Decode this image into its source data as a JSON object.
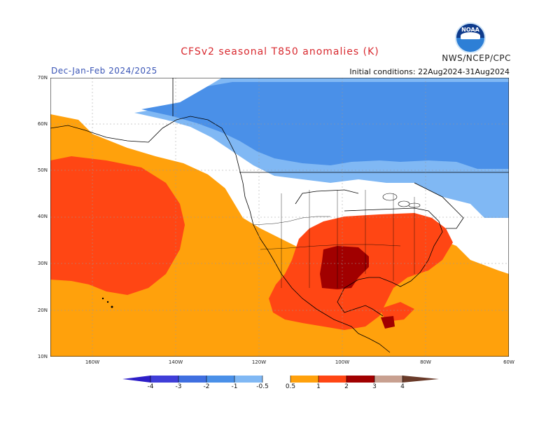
{
  "header": {
    "title": "CFSv2 seasonal T850 anomalies (K)",
    "org": "NWS/NCEP/CPC",
    "season": "Dec-Jan-Feb 2024/2025",
    "initial_conditions": "Initial conditions: 22Aug2024-31Aug2024",
    "logo_text": "NOAA"
  },
  "map": {
    "latitude_labels": [
      "70N",
      "60N",
      "50N",
      "40N",
      "30N",
      "20N",
      "10N"
    ],
    "longitude_labels": [
      "160W",
      "140W",
      "120W",
      "100W",
      "80W",
      "60W"
    ],
    "colors": {
      "cool": "#4a90e8",
      "light_cool": "#80b8f4",
      "neutral": "#ffffff",
      "warm_05": "#ffa10c",
      "warm_1": "#ff4614",
      "warm_2": "#a10000",
      "land": "#f4f4f4",
      "outline": "#000000"
    },
    "regions": [
      {
        "name": "Canada / Greenland cold anomaly",
        "class": "-1"
      },
      {
        "name": "North Pacific / Gulf of Alaska warm anomaly",
        "class": "0.5"
      },
      {
        "name": "Central North Pacific warm core",
        "class": "1"
      },
      {
        "name": "Southern US / Mexico warm anomaly",
        "class": "1"
      },
      {
        "name": "Texas peak warm anomaly",
        "class": "2"
      }
    ]
  },
  "colorbar": {
    "ticks": [
      "-4",
      "-3",
      "-2",
      "-1",
      "-0.5",
      "0.5",
      "1",
      "2",
      "3",
      "4"
    ],
    "colors": [
      "#2d1ec8",
      "#3f6fe0",
      "#4a90e8",
      "#80b8f4",
      "#ffffff",
      "#ffa10c",
      "#ff4614",
      "#a10000",
      "#c8a090",
      "#6a3b2a"
    ]
  }
}
